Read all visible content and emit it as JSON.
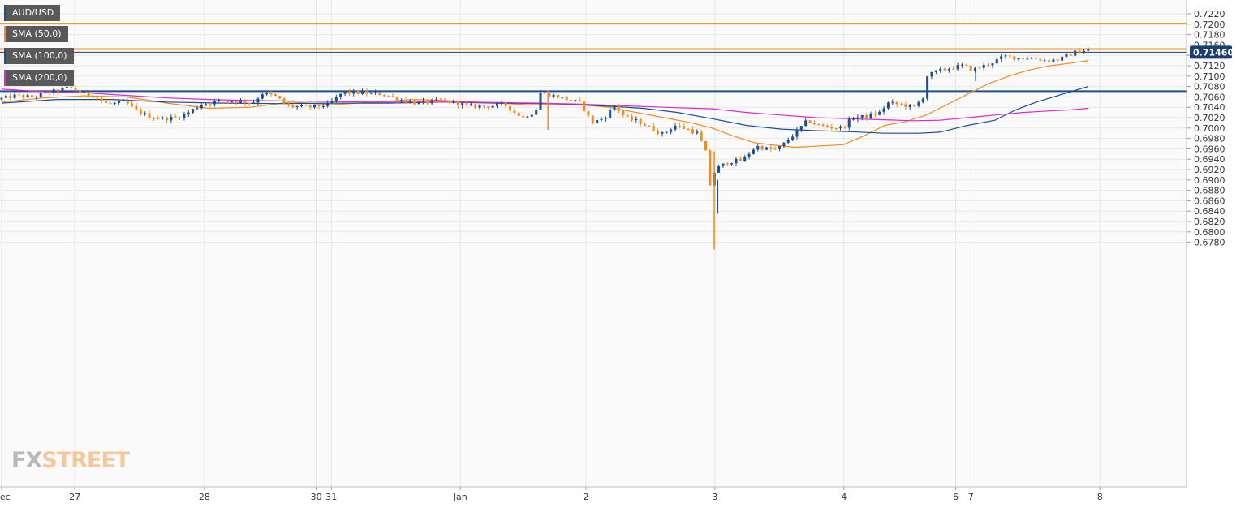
{
  "chart_data": {
    "type": "candlestick",
    "symbol": "AUD/USD",
    "y_axis": {
      "range": [
        0.6766,
        0.724
      ],
      "ticks": [
        "0.7220",
        "0.7200",
        "0.7180",
        "0.7160",
        "0.7140",
        "0.7120",
        "0.7100",
        "0.7080",
        "0.7060",
        "0.7040",
        "0.7020",
        "0.7000",
        "0.6980",
        "0.6960",
        "0.6940",
        "0.6920",
        "0.6900",
        "0.6880",
        "0.6860",
        "0.6840",
        "0.6820",
        "0.6800",
        "0.6780"
      ]
    },
    "x_axis": {
      "range": [
        0,
        17.2
      ],
      "ticks": [
        {
          "label": "Dec",
          "t": 0.0
        },
        {
          "label": "27",
          "t": 1.06
        },
        {
          "label": "28",
          "t": 2.94
        },
        {
          "label": "30",
          "t": 4.56
        },
        {
          "label": "31",
          "t": 4.78
        },
        {
          "label": "Jan",
          "t": 6.65
        },
        {
          "label": "2",
          "t": 8.47
        },
        {
          "label": "3",
          "t": 10.34
        },
        {
          "label": "4",
          "t": 12.21
        },
        {
          "label": "6",
          "t": 13.83
        },
        {
          "label": "7",
          "t": 14.05
        },
        {
          "label": "8",
          "t": 15.92
        }
      ]
    },
    "current_price": "0.71460",
    "horizontal_levels": [
      {
        "value": 0.7201,
        "color": "#f28c1c"
      },
      {
        "value": 0.7152,
        "color": "#f28c1c"
      },
      {
        "value": 0.7071,
        "color": "#1a4f91"
      }
    ],
    "price_path": [
      [
        0.0,
        0.7055
      ],
      [
        0.25,
        0.7062
      ],
      [
        0.5,
        0.706
      ],
      [
        0.8,
        0.707
      ],
      [
        1.05,
        0.7078
      ],
      [
        1.2,
        0.7068
      ],
      [
        1.4,
        0.7062
      ],
      [
        1.6,
        0.7045
      ],
      [
        1.85,
        0.705
      ],
      [
        2.0,
        0.7035
      ],
      [
        2.2,
        0.7022
      ],
      [
        2.4,
        0.7018
      ],
      [
        2.6,
        0.702
      ],
      [
        2.75,
        0.7028
      ],
      [
        2.95,
        0.7045
      ],
      [
        3.2,
        0.7052
      ],
      [
        3.5,
        0.7052
      ],
      [
        3.7,
        0.7048
      ],
      [
        3.85,
        0.7068
      ],
      [
        4.05,
        0.706
      ],
      [
        4.2,
        0.7042
      ],
      [
        4.5,
        0.704
      ],
      [
        4.8,
        0.7045
      ],
      [
        5.0,
        0.7068
      ],
      [
        5.3,
        0.7068
      ],
      [
        5.6,
        0.7065
      ],
      [
        5.8,
        0.7055
      ],
      [
        6.1,
        0.7048
      ],
      [
        6.4,
        0.7052
      ],
      [
        6.6,
        0.705
      ],
      [
        6.85,
        0.7042
      ],
      [
        7.1,
        0.7042
      ],
      [
        7.35,
        0.7045
      ],
      [
        7.5,
        0.703
      ],
      [
        7.62,
        0.702
      ],
      [
        7.72,
        0.7028
      ],
      [
        7.8,
        0.703
      ],
      [
        7.88,
        0.707
      ],
      [
        7.98,
        0.7065
      ],
      [
        8.2,
        0.7058
      ],
      [
        8.45,
        0.7048
      ],
      [
        8.62,
        0.701
      ],
      [
        8.8,
        0.702
      ],
      [
        8.95,
        0.7045
      ],
      [
        9.1,
        0.702
      ],
      [
        9.3,
        0.7012
      ],
      [
        9.5,
        0.6998
      ],
      [
        9.65,
        0.6988
      ],
      [
        9.82,
        0.7005
      ],
      [
        10.0,
        0.6998
      ],
      [
        10.15,
        0.699
      ],
      [
        10.28,
        0.695
      ],
      [
        10.35,
        0.687
      ],
      [
        10.4,
        0.692
      ],
      [
        10.6,
        0.6935
      ],
      [
        10.8,
        0.6938
      ],
      [
        11.0,
        0.6965
      ],
      [
        11.15,
        0.696
      ],
      [
        11.3,
        0.6958
      ],
      [
        11.45,
        0.6975
      ],
      [
        11.6,
        0.6995
      ],
      [
        11.75,
        0.7015
      ],
      [
        11.9,
        0.7005
      ],
      [
        12.05,
        0.7002
      ],
      [
        12.25,
        0.7
      ],
      [
        12.4,
        0.702
      ],
      [
        12.6,
        0.7022
      ],
      [
        12.8,
        0.703
      ],
      [
        12.9,
        0.7048
      ],
      [
        13.1,
        0.7045
      ],
      [
        13.3,
        0.704
      ],
      [
        13.42,
        0.706
      ],
      [
        13.48,
        0.71
      ],
      [
        13.6,
        0.7108
      ],
      [
        13.8,
        0.7115
      ],
      [
        14.0,
        0.712
      ],
      [
        14.15,
        0.7112
      ],
      [
        14.4,
        0.7125
      ],
      [
        14.6,
        0.7138
      ],
      [
        14.8,
        0.7135
      ],
      [
        15.0,
        0.7135
      ],
      [
        15.2,
        0.713
      ],
      [
        15.4,
        0.7132
      ],
      [
        15.6,
        0.7145
      ],
      [
        15.75,
        0.715
      ]
    ],
    "wick_extremes": [
      {
        "t": 10.33,
        "low": 0.6766,
        "high": 0.6955
      },
      {
        "t": 10.38,
        "low": 0.6835,
        "high": 0.69
      },
      {
        "t": 7.92,
        "low": 0.6996,
        "high": 0.7072
      },
      {
        "t": 14.12,
        "low": 0.709,
        "high": 0.7115
      }
    ],
    "series": [
      {
        "name": "SMA (50,0)",
        "color": "#f28c1c",
        "points": [
          [
            0.0,
            0.705
          ],
          [
            0.6,
            0.7058
          ],
          [
            1.2,
            0.7062
          ],
          [
            1.8,
            0.706
          ],
          [
            2.4,
            0.7048
          ],
          [
            3.0,
            0.7038
          ],
          [
            3.6,
            0.704
          ],
          [
            4.2,
            0.705
          ],
          [
            4.8,
            0.7045
          ],
          [
            5.4,
            0.705
          ],
          [
            6.0,
            0.7055
          ],
          [
            6.6,
            0.7052
          ],
          [
            7.2,
            0.7048
          ],
          [
            7.6,
            0.7045
          ],
          [
            8.0,
            0.7045
          ],
          [
            8.4,
            0.7045
          ],
          [
            8.8,
            0.704
          ],
          [
            9.2,
            0.703
          ],
          [
            9.6,
            0.702
          ],
          [
            10.0,
            0.701
          ],
          [
            10.3,
            0.7
          ],
          [
            10.6,
            0.6985
          ],
          [
            10.9,
            0.6972
          ],
          [
            11.2,
            0.6967
          ],
          [
            11.5,
            0.6963
          ],
          [
            11.8,
            0.6965
          ],
          [
            12.2,
            0.6968
          ],
          [
            12.5,
            0.6985
          ],
          [
            12.8,
            0.7005
          ],
          [
            13.1,
            0.7012
          ],
          [
            13.4,
            0.7025
          ],
          [
            13.7,
            0.7045
          ],
          [
            14.0,
            0.7065
          ],
          [
            14.3,
            0.7085
          ],
          [
            14.6,
            0.71
          ],
          [
            14.9,
            0.7112
          ],
          [
            15.2,
            0.712
          ],
          [
            15.5,
            0.7125
          ],
          [
            15.75,
            0.713
          ]
        ]
      },
      {
        "name": "SMA (100,0)",
        "color": "#1a4f91",
        "points": [
          [
            0.0,
            0.7048
          ],
          [
            0.8,
            0.7055
          ],
          [
            1.6,
            0.7055
          ],
          [
            2.4,
            0.705
          ],
          [
            3.2,
            0.7048
          ],
          [
            4.0,
            0.7047
          ],
          [
            4.8,
            0.7048
          ],
          [
            5.6,
            0.7048
          ],
          [
            6.4,
            0.705
          ],
          [
            7.2,
            0.7048
          ],
          [
            8.0,
            0.7047
          ],
          [
            8.8,
            0.7042
          ],
          [
            9.3,
            0.7038
          ],
          [
            9.8,
            0.703
          ],
          [
            10.3,
            0.7018
          ],
          [
            10.8,
            0.7005
          ],
          [
            11.3,
            0.6998
          ],
          [
            11.8,
            0.6995
          ],
          [
            12.3,
            0.6993
          ],
          [
            12.8,
            0.699
          ],
          [
            13.3,
            0.699
          ],
          [
            13.6,
            0.6992
          ],
          [
            14.0,
            0.7005
          ],
          [
            14.4,
            0.7015
          ],
          [
            14.7,
            0.7035
          ],
          [
            15.0,
            0.705
          ],
          [
            15.3,
            0.7062
          ],
          [
            15.55,
            0.7072
          ],
          [
            15.75,
            0.708
          ]
        ]
      },
      {
        "name": "SMA (200,0)",
        "color": "#e324d0",
        "points": [
          [
            0.0,
            0.7075
          ],
          [
            0.6,
            0.707
          ],
          [
            1.2,
            0.7068
          ],
          [
            1.8,
            0.7063
          ],
          [
            2.4,
            0.7058
          ],
          [
            3.0,
            0.7055
          ],
          [
            3.6,
            0.7053
          ],
          [
            4.2,
            0.7052
          ],
          [
            4.8,
            0.7051
          ],
          [
            5.4,
            0.705
          ],
          [
            6.0,
            0.705
          ],
          [
            6.6,
            0.705
          ],
          [
            7.2,
            0.7049
          ],
          [
            7.8,
            0.7048
          ],
          [
            8.4,
            0.7046
          ],
          [
            9.0,
            0.7043
          ],
          [
            9.6,
            0.704
          ],
          [
            10.3,
            0.7037
          ],
          [
            10.8,
            0.703
          ],
          [
            11.3,
            0.7025
          ],
          [
            11.8,
            0.702
          ],
          [
            12.3,
            0.7018
          ],
          [
            12.8,
            0.7016
          ],
          [
            13.2,
            0.7014
          ],
          [
            13.6,
            0.7015
          ],
          [
            14.0,
            0.702
          ],
          [
            14.4,
            0.7025
          ],
          [
            14.8,
            0.703
          ],
          [
            15.2,
            0.7033
          ],
          [
            15.5,
            0.7035
          ],
          [
            15.75,
            0.7038
          ]
        ]
      }
    ]
  },
  "legend": [
    {
      "label": "AUD/USD",
      "color": "#1a4f91"
    },
    {
      "label": "SMA (50,0)",
      "color": "#f28c1c"
    },
    {
      "label": "SMA (100,0)",
      "color": "#1a4f91"
    },
    {
      "label": "SMA (200,0)",
      "color": "#e324d0"
    }
  ],
  "watermark": {
    "part1": "FX",
    "part2": "STREET"
  },
  "colors": {
    "bull_candle": "#1a4f91",
    "bear_candle": "#f28c1c",
    "grid": "#e7e7e7",
    "axis_text": "#333333",
    "price_badge": "#1a3f6f"
  }
}
